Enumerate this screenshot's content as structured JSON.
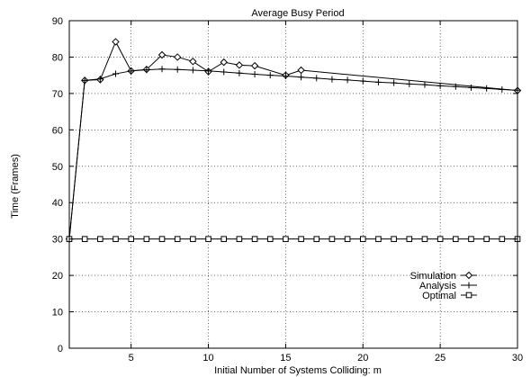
{
  "chart_data": {
    "type": "line",
    "title": "Average Busy Period",
    "xlabel": "Initial Number of Systems Colliding: m",
    "ylabel": "Time (Frames)",
    "xlim": [
      1,
      30
    ],
    "ylim": [
      0,
      90
    ],
    "xticks": [
      5,
      10,
      15,
      20,
      25,
      30
    ],
    "yticks": [
      0,
      10,
      20,
      30,
      40,
      50,
      60,
      70,
      80,
      90
    ],
    "grid": true,
    "legend_position": "bottom-right",
    "series": [
      {
        "name": "Simulation",
        "marker": "diamond",
        "x": [
          1,
          2,
          3,
          4,
          5,
          6,
          7,
          8,
          9,
          10,
          11,
          12,
          13,
          15,
          16,
          30
        ],
        "y": [
          30,
          73.6,
          73.8,
          84.2,
          76.2,
          76.6,
          80.6,
          80.0,
          78.8,
          76.0,
          78.6,
          77.8,
          77.6,
          75.0,
          76.4,
          70.8
        ]
      },
      {
        "name": "Analysis",
        "marker": "plus",
        "x": [
          1,
          2,
          3,
          4,
          5,
          6,
          7,
          8,
          9,
          10,
          11,
          12,
          13,
          14,
          15,
          16,
          17,
          18,
          19,
          20,
          21,
          22,
          23,
          24,
          25,
          26,
          27,
          28,
          29,
          30
        ],
        "y": [
          30,
          73.6,
          74.0,
          75.4,
          76.2,
          76.5,
          76.7,
          76.6,
          76.4,
          76.2,
          75.9,
          75.6,
          75.3,
          75.0,
          74.8,
          74.5,
          74.2,
          73.9,
          73.7,
          73.4,
          73.1,
          72.9,
          72.6,
          72.4,
          72.1,
          71.9,
          71.6,
          71.4,
          71.1,
          70.9
        ]
      },
      {
        "name": "Optimal",
        "marker": "square",
        "x": [
          1,
          2,
          3,
          4,
          5,
          6,
          7,
          8,
          9,
          10,
          11,
          12,
          13,
          14,
          15,
          16,
          17,
          18,
          19,
          20,
          21,
          22,
          23,
          24,
          25,
          26,
          27,
          28,
          29,
          30
        ],
        "y": [
          30,
          30,
          30,
          30,
          30,
          30,
          30,
          30,
          30,
          30,
          30,
          30,
          30,
          30,
          30,
          30,
          30,
          30,
          30,
          30,
          30,
          30,
          30,
          30,
          30,
          30,
          30,
          30,
          30,
          30
        ]
      }
    ]
  }
}
